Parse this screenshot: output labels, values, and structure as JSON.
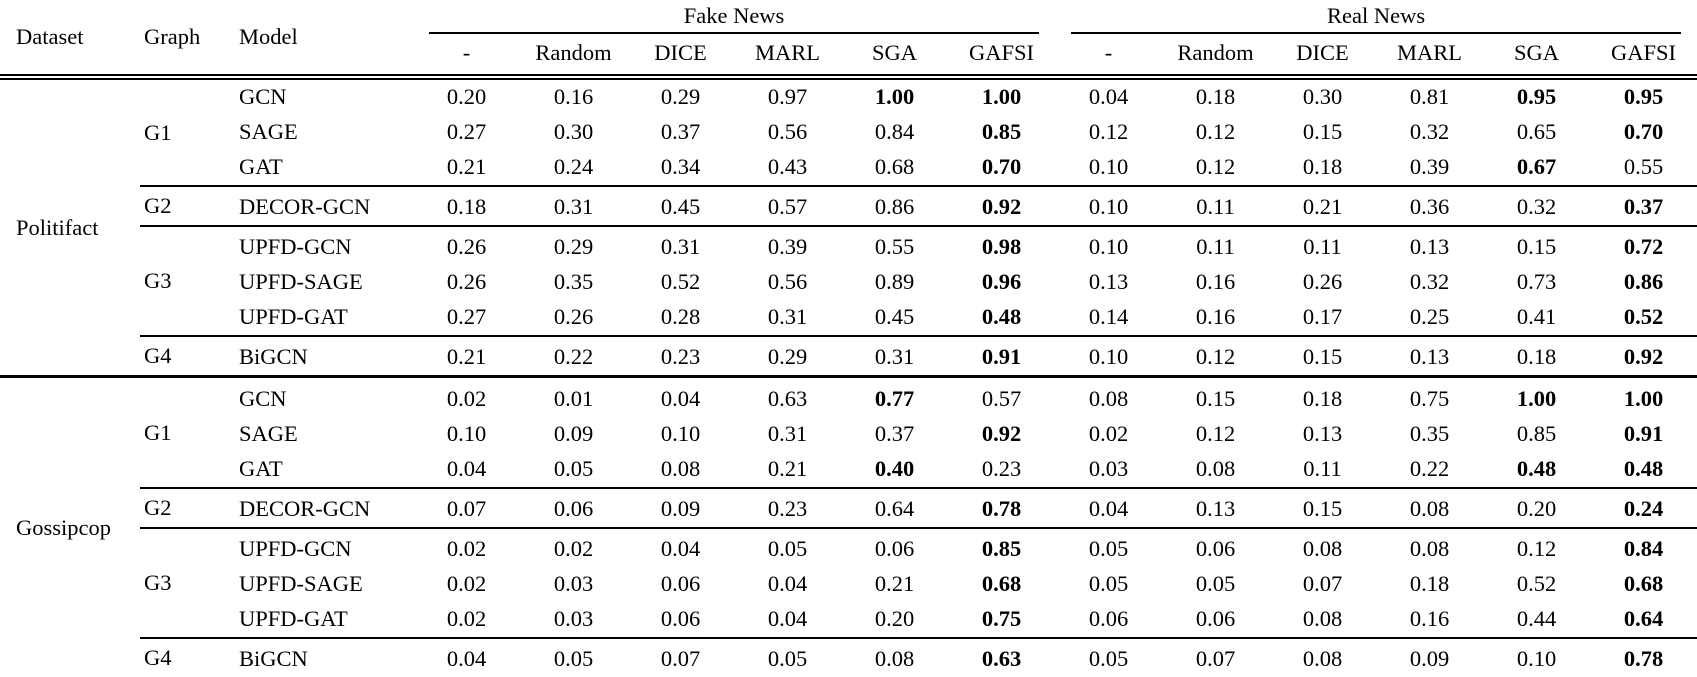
{
  "table": {
    "columns": {
      "dataset": "Dataset",
      "graph": "Graph",
      "model": "Model"
    },
    "span_headers": [
      "Fake News",
      "Real News"
    ],
    "sub_columns": [
      "-",
      "Random",
      "DICE",
      "MARL",
      "SGA",
      "GAFSI"
    ],
    "text_color": "#000000",
    "background_color": "#ffffff",
    "datasets": [
      {
        "name": "Politifact",
        "groups": [
          {
            "graph": "G1",
            "rows": [
              {
                "model": "GCN",
                "fake": [
                  "0.20",
                  "0.16",
                  "0.29",
                  "0.97",
                  "1.00",
                  "1.00"
                ],
                "fake_bold": [
                  4,
                  5
                ],
                "real": [
                  "0.04",
                  "0.18",
                  "0.30",
                  "0.81",
                  "0.95",
                  "0.95"
                ],
                "real_bold": [
                  4,
                  5
                ]
              },
              {
                "model": "SAGE",
                "fake": [
                  "0.27",
                  "0.30",
                  "0.37",
                  "0.56",
                  "0.84",
                  "0.85"
                ],
                "fake_bold": [
                  5
                ],
                "real": [
                  "0.12",
                  "0.12",
                  "0.15",
                  "0.32",
                  "0.65",
                  "0.70"
                ],
                "real_bold": [
                  5
                ]
              },
              {
                "model": "GAT",
                "fake": [
                  "0.21",
                  "0.24",
                  "0.34",
                  "0.43",
                  "0.68",
                  "0.70"
                ],
                "fake_bold": [
                  5
                ],
                "real": [
                  "0.10",
                  "0.12",
                  "0.18",
                  "0.39",
                  "0.67",
                  "0.55"
                ],
                "real_bold": [
                  4
                ]
              }
            ]
          },
          {
            "graph": "G2",
            "rows": [
              {
                "model": "DECOR-GCN",
                "fake": [
                  "0.18",
                  "0.31",
                  "0.45",
                  "0.57",
                  "0.86",
                  "0.92"
                ],
                "fake_bold": [
                  5
                ],
                "real": [
                  "0.10",
                  "0.11",
                  "0.21",
                  "0.36",
                  "0.32",
                  "0.37"
                ],
                "real_bold": [
                  5
                ]
              }
            ]
          },
          {
            "graph": "G3",
            "rows": [
              {
                "model": "UPFD-GCN",
                "fake": [
                  "0.26",
                  "0.29",
                  "0.31",
                  "0.39",
                  "0.55",
                  "0.98"
                ],
                "fake_bold": [
                  5
                ],
                "real": [
                  "0.10",
                  "0.11",
                  "0.11",
                  "0.13",
                  "0.15",
                  "0.72"
                ],
                "real_bold": [
                  5
                ]
              },
              {
                "model": "UPFD-SAGE",
                "fake": [
                  "0.26",
                  "0.35",
                  "0.52",
                  "0.56",
                  "0.89",
                  "0.96"
                ],
                "fake_bold": [
                  5
                ],
                "real": [
                  "0.13",
                  "0.16",
                  "0.26",
                  "0.32",
                  "0.73",
                  "0.86"
                ],
                "real_bold": [
                  5
                ]
              },
              {
                "model": "UPFD-GAT",
                "fake": [
                  "0.27",
                  "0.26",
                  "0.28",
                  "0.31",
                  "0.45",
                  "0.48"
                ],
                "fake_bold": [
                  5
                ],
                "real": [
                  "0.14",
                  "0.16",
                  "0.17",
                  "0.25",
                  "0.41",
                  "0.52"
                ],
                "real_bold": [
                  5
                ]
              }
            ]
          },
          {
            "graph": "G4",
            "rows": [
              {
                "model": "BiGCN",
                "fake": [
                  "0.21",
                  "0.22",
                  "0.23",
                  "0.29",
                  "0.31",
                  "0.91"
                ],
                "fake_bold": [
                  5
                ],
                "real": [
                  "0.10",
                  "0.12",
                  "0.15",
                  "0.13",
                  "0.18",
                  "0.92"
                ],
                "real_bold": [
                  5
                ]
              }
            ]
          }
        ]
      },
      {
        "name": "Gossipcop",
        "groups": [
          {
            "graph": "G1",
            "rows": [
              {
                "model": "GCN",
                "fake": [
                  "0.02",
                  "0.01",
                  "0.04",
                  "0.63",
                  "0.77",
                  "0.57"
                ],
                "fake_bold": [
                  4
                ],
                "real": [
                  "0.08",
                  "0.15",
                  "0.18",
                  "0.75",
                  "1.00",
                  "1.00"
                ],
                "real_bold": [
                  4,
                  5
                ]
              },
              {
                "model": "SAGE",
                "fake": [
                  "0.10",
                  "0.09",
                  "0.10",
                  "0.31",
                  "0.37",
                  "0.92"
                ],
                "fake_bold": [
                  5
                ],
                "real": [
                  "0.02",
                  "0.12",
                  "0.13",
                  "0.35",
                  "0.85",
                  "0.91"
                ],
                "real_bold": [
                  5
                ]
              },
              {
                "model": "GAT",
                "fake": [
                  "0.04",
                  "0.05",
                  "0.08",
                  "0.21",
                  "0.40",
                  "0.23"
                ],
                "fake_bold": [
                  4
                ],
                "real": [
                  "0.03",
                  "0.08",
                  "0.11",
                  "0.22",
                  "0.48",
                  "0.48"
                ],
                "real_bold": [
                  4,
                  5
                ]
              }
            ]
          },
          {
            "graph": "G2",
            "rows": [
              {
                "model": "DECOR-GCN",
                "fake": [
                  "0.07",
                  "0.06",
                  "0.09",
                  "0.23",
                  "0.64",
                  "0.78"
                ],
                "fake_bold": [
                  5
                ],
                "real": [
                  "0.04",
                  "0.13",
                  "0.15",
                  "0.08",
                  "0.20",
                  "0.24"
                ],
                "real_bold": [
                  5
                ]
              }
            ]
          },
          {
            "graph": "G3",
            "rows": [
              {
                "model": "UPFD-GCN",
                "fake": [
                  "0.02",
                  "0.02",
                  "0.04",
                  "0.05",
                  "0.06",
                  "0.85"
                ],
                "fake_bold": [
                  5
                ],
                "real": [
                  "0.05",
                  "0.06",
                  "0.08",
                  "0.08",
                  "0.12",
                  "0.84"
                ],
                "real_bold": [
                  5
                ]
              },
              {
                "model": "UPFD-SAGE",
                "fake": [
                  "0.02",
                  "0.03",
                  "0.06",
                  "0.04",
                  "0.21",
                  "0.68"
                ],
                "fake_bold": [
                  5
                ],
                "real": [
                  "0.05",
                  "0.05",
                  "0.07",
                  "0.18",
                  "0.52",
                  "0.68"
                ],
                "real_bold": [
                  5
                ]
              },
              {
                "model": "UPFD-GAT",
                "fake": [
                  "0.02",
                  "0.03",
                  "0.06",
                  "0.04",
                  "0.20",
                  "0.75"
                ],
                "fake_bold": [
                  5
                ],
                "real": [
                  "0.06",
                  "0.06",
                  "0.08",
                  "0.16",
                  "0.44",
                  "0.64"
                ],
                "real_bold": [
                  5
                ]
              }
            ]
          },
          {
            "graph": "G4",
            "rows": [
              {
                "model": "BiGCN",
                "fake": [
                  "0.04",
                  "0.05",
                  "0.07",
                  "0.05",
                  "0.08",
                  "0.63"
                ],
                "fake_bold": [
                  5
                ],
                "real": [
                  "0.05",
                  "0.07",
                  "0.08",
                  "0.09",
                  "0.10",
                  "0.78"
                ],
                "real_bold": [
                  5
                ]
              }
            ]
          }
        ]
      }
    ]
  }
}
